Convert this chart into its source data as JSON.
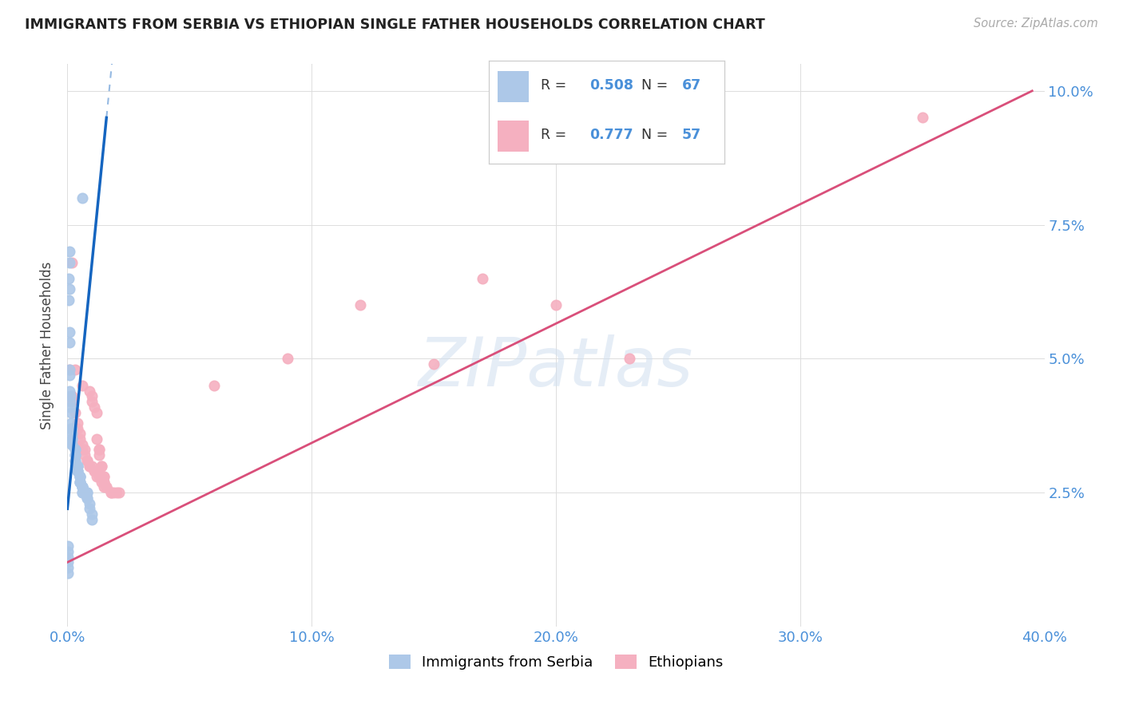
{
  "title": "IMMIGRANTS FROM SERBIA VS ETHIOPIAN SINGLE FATHER HOUSEHOLDS CORRELATION CHART",
  "source": "Source: ZipAtlas.com",
  "ylabel": "Single Father Households",
  "xlabel_ticks": [
    "0.0%",
    "10.0%",
    "20.0%",
    "30.0%",
    "40.0%"
  ],
  "ylabel_ticks": [
    "2.5%",
    "5.0%",
    "7.5%",
    "10.0%"
  ],
  "xlim": [
    0.0,
    0.4
  ],
  "ylim": [
    0.0,
    0.105
  ],
  "serbia_R": "0.508",
  "serbia_N": "67",
  "ethiopia_R": "0.777",
  "ethiopia_N": "57",
  "serbia_color": "#adc8e8",
  "ethiopia_color": "#f5b0c0",
  "serbia_line_color": "#1565C0",
  "ethiopia_line_color": "#d94f7a",
  "legend_text_color": "#4a90d9",
  "watermark_color": "#d0dff0",
  "serbia_scatter": [
    [
      0.0005,
      0.065
    ],
    [
      0.0005,
      0.061
    ],
    [
      0.001,
      0.055
    ],
    [
      0.001,
      0.053
    ],
    [
      0.001,
      0.07
    ],
    [
      0.001,
      0.068
    ],
    [
      0.001,
      0.063
    ],
    [
      0.0008,
      0.048
    ],
    [
      0.0008,
      0.047
    ],
    [
      0.0008,
      0.044
    ],
    [
      0.0012,
      0.043
    ],
    [
      0.0012,
      0.042
    ],
    [
      0.0012,
      0.041
    ],
    [
      0.0015,
      0.04
    ],
    [
      0.0015,
      0.038
    ],
    [
      0.0015,
      0.037
    ],
    [
      0.002,
      0.037
    ],
    [
      0.002,
      0.036
    ],
    [
      0.002,
      0.035
    ],
    [
      0.002,
      0.035
    ],
    [
      0.002,
      0.034
    ],
    [
      0.002,
      0.034
    ],
    [
      0.003,
      0.033
    ],
    [
      0.003,
      0.033
    ],
    [
      0.003,
      0.032
    ],
    [
      0.003,
      0.032
    ],
    [
      0.003,
      0.031
    ],
    [
      0.003,
      0.031
    ],
    [
      0.004,
      0.03
    ],
    [
      0.004,
      0.03
    ],
    [
      0.004,
      0.03
    ],
    [
      0.004,
      0.029
    ],
    [
      0.004,
      0.029
    ],
    [
      0.004,
      0.029
    ],
    [
      0.005,
      0.028
    ],
    [
      0.005,
      0.028
    ],
    [
      0.005,
      0.028
    ],
    [
      0.005,
      0.027
    ],
    [
      0.005,
      0.027
    ],
    [
      0.005,
      0.027
    ],
    [
      0.006,
      0.026
    ],
    [
      0.006,
      0.026
    ],
    [
      0.006,
      0.026
    ],
    [
      0.006,
      0.026
    ],
    [
      0.006,
      0.025
    ],
    [
      0.006,
      0.025
    ],
    [
      0.007,
      0.025
    ],
    [
      0.007,
      0.025
    ],
    [
      0.007,
      0.025
    ],
    [
      0.007,
      0.025
    ],
    [
      0.007,
      0.025
    ],
    [
      0.007,
      0.025
    ],
    [
      0.008,
      0.025
    ],
    [
      0.008,
      0.025
    ],
    [
      0.008,
      0.024
    ],
    [
      0.008,
      0.024
    ],
    [
      0.009,
      0.023
    ],
    [
      0.009,
      0.022
    ],
    [
      0.01,
      0.021
    ],
    [
      0.01,
      0.02
    ],
    [
      0.006,
      0.08
    ],
    [
      0.0003,
      0.01
    ],
    [
      0.0003,
      0.011
    ],
    [
      0.0003,
      0.012
    ],
    [
      0.0003,
      0.013
    ],
    [
      0.0003,
      0.014
    ],
    [
      0.0003,
      0.015
    ]
  ],
  "ethiopia_scatter": [
    [
      0.001,
      0.048
    ],
    [
      0.002,
      0.068
    ],
    [
      0.002,
      0.043
    ],
    [
      0.002,
      0.042
    ],
    [
      0.003,
      0.04
    ],
    [
      0.004,
      0.038
    ],
    [
      0.004,
      0.037
    ],
    [
      0.005,
      0.036
    ],
    [
      0.005,
      0.035
    ],
    [
      0.006,
      0.034
    ],
    [
      0.006,
      0.033
    ],
    [
      0.007,
      0.033
    ],
    [
      0.007,
      0.032
    ],
    [
      0.008,
      0.031
    ],
    [
      0.008,
      0.031
    ],
    [
      0.009,
      0.03
    ],
    [
      0.009,
      0.03
    ],
    [
      0.01,
      0.03
    ],
    [
      0.011,
      0.029
    ],
    [
      0.011,
      0.029
    ],
    [
      0.012,
      0.028
    ],
    [
      0.013,
      0.028
    ],
    [
      0.013,
      0.028
    ],
    [
      0.014,
      0.027
    ],
    [
      0.015,
      0.027
    ],
    [
      0.015,
      0.026
    ],
    [
      0.016,
      0.026
    ],
    [
      0.018,
      0.025
    ],
    [
      0.018,
      0.025
    ],
    [
      0.019,
      0.025
    ],
    [
      0.02,
      0.025
    ],
    [
      0.021,
      0.025
    ],
    [
      0.009,
      0.044
    ],
    [
      0.01,
      0.043
    ],
    [
      0.01,
      0.042
    ],
    [
      0.011,
      0.041
    ],
    [
      0.012,
      0.04
    ],
    [
      0.012,
      0.035
    ],
    [
      0.013,
      0.033
    ],
    [
      0.013,
      0.033
    ],
    [
      0.013,
      0.032
    ],
    [
      0.014,
      0.03
    ],
    [
      0.014,
      0.03
    ],
    [
      0.015,
      0.028
    ],
    [
      0.015,
      0.028
    ],
    [
      0.015,
      0.027
    ],
    [
      0.016,
      0.026
    ],
    [
      0.35,
      0.095
    ],
    [
      0.17,
      0.065
    ],
    [
      0.2,
      0.06
    ],
    [
      0.23,
      0.05
    ],
    [
      0.003,
      0.048
    ],
    [
      0.12,
      0.06
    ],
    [
      0.006,
      0.045
    ],
    [
      0.06,
      0.045
    ],
    [
      0.09,
      0.05
    ],
    [
      0.15,
      0.049
    ]
  ],
  "watermark": "ZIPatlas",
  "background_color": "#ffffff",
  "grid_color": "#dddddd",
  "serbia_line_x0": 0.0,
  "serbia_line_y0": 0.022,
  "serbia_line_x1": 0.016,
  "serbia_line_y1": 0.095,
  "serbia_line_dash_x1": 0.025,
  "ethiopia_line_x0": 0.0,
  "ethiopia_line_y0": 0.012,
  "ethiopia_line_x1": 0.395,
  "ethiopia_line_y1": 0.1
}
